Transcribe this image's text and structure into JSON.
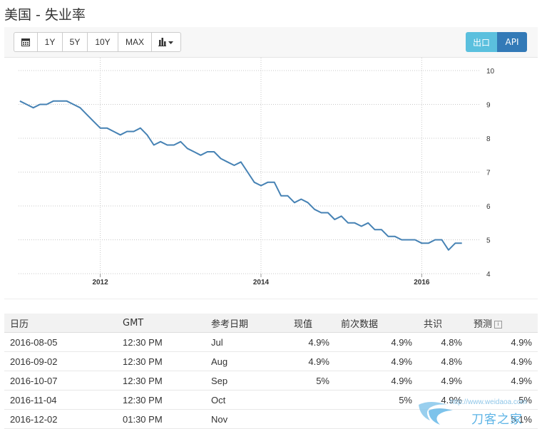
{
  "page_title": "美国 - 失业率",
  "toolbar": {
    "buttons": [
      {
        "label": "",
        "icon": "calendar-icon"
      },
      {
        "label": "1Y"
      },
      {
        "label": "5Y"
      },
      {
        "label": "10Y"
      },
      {
        "label": "MAX"
      },
      {
        "label": "",
        "icon": "bar-chart-dropdown-icon"
      }
    ],
    "export_label": "出口",
    "api_label": "API",
    "export_color": "#5bc0de",
    "api_color": "#337ab7"
  },
  "chart_data": {
    "type": "line",
    "title": "",
    "xlabel": "",
    "ylabel": "",
    "ylim": [
      4,
      10
    ],
    "y_ticks": [
      "4",
      "5",
      "6",
      "7",
      "8",
      "9",
      "10"
    ],
    "x_ticks": [
      "2012",
      "2014",
      "2016"
    ],
    "grid": true,
    "line_color": "#4682b4",
    "series": [
      {
        "x": [
          "2011-01",
          "2011-02",
          "2011-03",
          "2011-04",
          "2011-05",
          "2011-06",
          "2011-07",
          "2011-08",
          "2011-09",
          "2011-10",
          "2011-11",
          "2011-12",
          "2012-01",
          "2012-02",
          "2012-03",
          "2012-04",
          "2012-05",
          "2012-06",
          "2012-07",
          "2012-08",
          "2012-09",
          "2012-10",
          "2012-11",
          "2012-12",
          "2013-01",
          "2013-02",
          "2013-03",
          "2013-04",
          "2013-05",
          "2013-06",
          "2013-07",
          "2013-08",
          "2013-09",
          "2013-10",
          "2013-11",
          "2013-12",
          "2014-01",
          "2014-02",
          "2014-03",
          "2014-04",
          "2014-05",
          "2014-06",
          "2014-07",
          "2014-08",
          "2014-09",
          "2014-10",
          "2014-11",
          "2014-12",
          "2015-01",
          "2015-02",
          "2015-03",
          "2015-04",
          "2015-05",
          "2015-06",
          "2015-07",
          "2015-08",
          "2015-09",
          "2015-10",
          "2015-11",
          "2015-12",
          "2016-01",
          "2016-02",
          "2016-03",
          "2016-04",
          "2016-05",
          "2016-06",
          "2016-07"
        ],
        "values": [
          9.1,
          9.0,
          8.9,
          9.0,
          9.0,
          9.1,
          9.1,
          9.1,
          9.0,
          8.9,
          8.7,
          8.5,
          8.3,
          8.3,
          8.2,
          8.1,
          8.2,
          8.2,
          8.3,
          8.1,
          7.8,
          7.9,
          7.8,
          7.8,
          7.9,
          7.7,
          7.6,
          7.5,
          7.6,
          7.6,
          7.4,
          7.3,
          7.2,
          7.3,
          7.0,
          6.7,
          6.6,
          6.7,
          6.7,
          6.3,
          6.3,
          6.1,
          6.2,
          6.1,
          5.9,
          5.8,
          5.8,
          5.6,
          5.7,
          5.5,
          5.5,
          5.4,
          5.5,
          5.3,
          5.3,
          5.1,
          5.1,
          5.0,
          5.0,
          5.0,
          4.9,
          4.9,
          5.0,
          5.0,
          4.7,
          4.9,
          4.9
        ]
      }
    ]
  },
  "table": {
    "headers": [
      "日历",
      "GMT",
      "参考日期",
      "现值",
      "前次数据",
      "共识",
      "预测"
    ],
    "rows": [
      [
        "2016-08-05",
        "12:30 PM",
        "Jul",
        "4.9%",
        "4.9%",
        "4.8%",
        "4.9%"
      ],
      [
        "2016-09-02",
        "12:30 PM",
        "Aug",
        "4.9%",
        "4.9%",
        "4.8%",
        "4.9%"
      ],
      [
        "2016-10-07",
        "12:30 PM",
        "Sep",
        "5%",
        "4.9%",
        "4.9%",
        "4.9%"
      ],
      [
        "2016-11-04",
        "12:30 PM",
        "Oct",
        "",
        "5%",
        "4.9%",
        "5%"
      ],
      [
        "2016-12-02",
        "01:30 PM",
        "Nov",
        "",
        "",
        "",
        "5.1%"
      ]
    ]
  },
  "watermark": {
    "url": "http://www.weidaoa.com",
    "name": "刀客之家"
  }
}
